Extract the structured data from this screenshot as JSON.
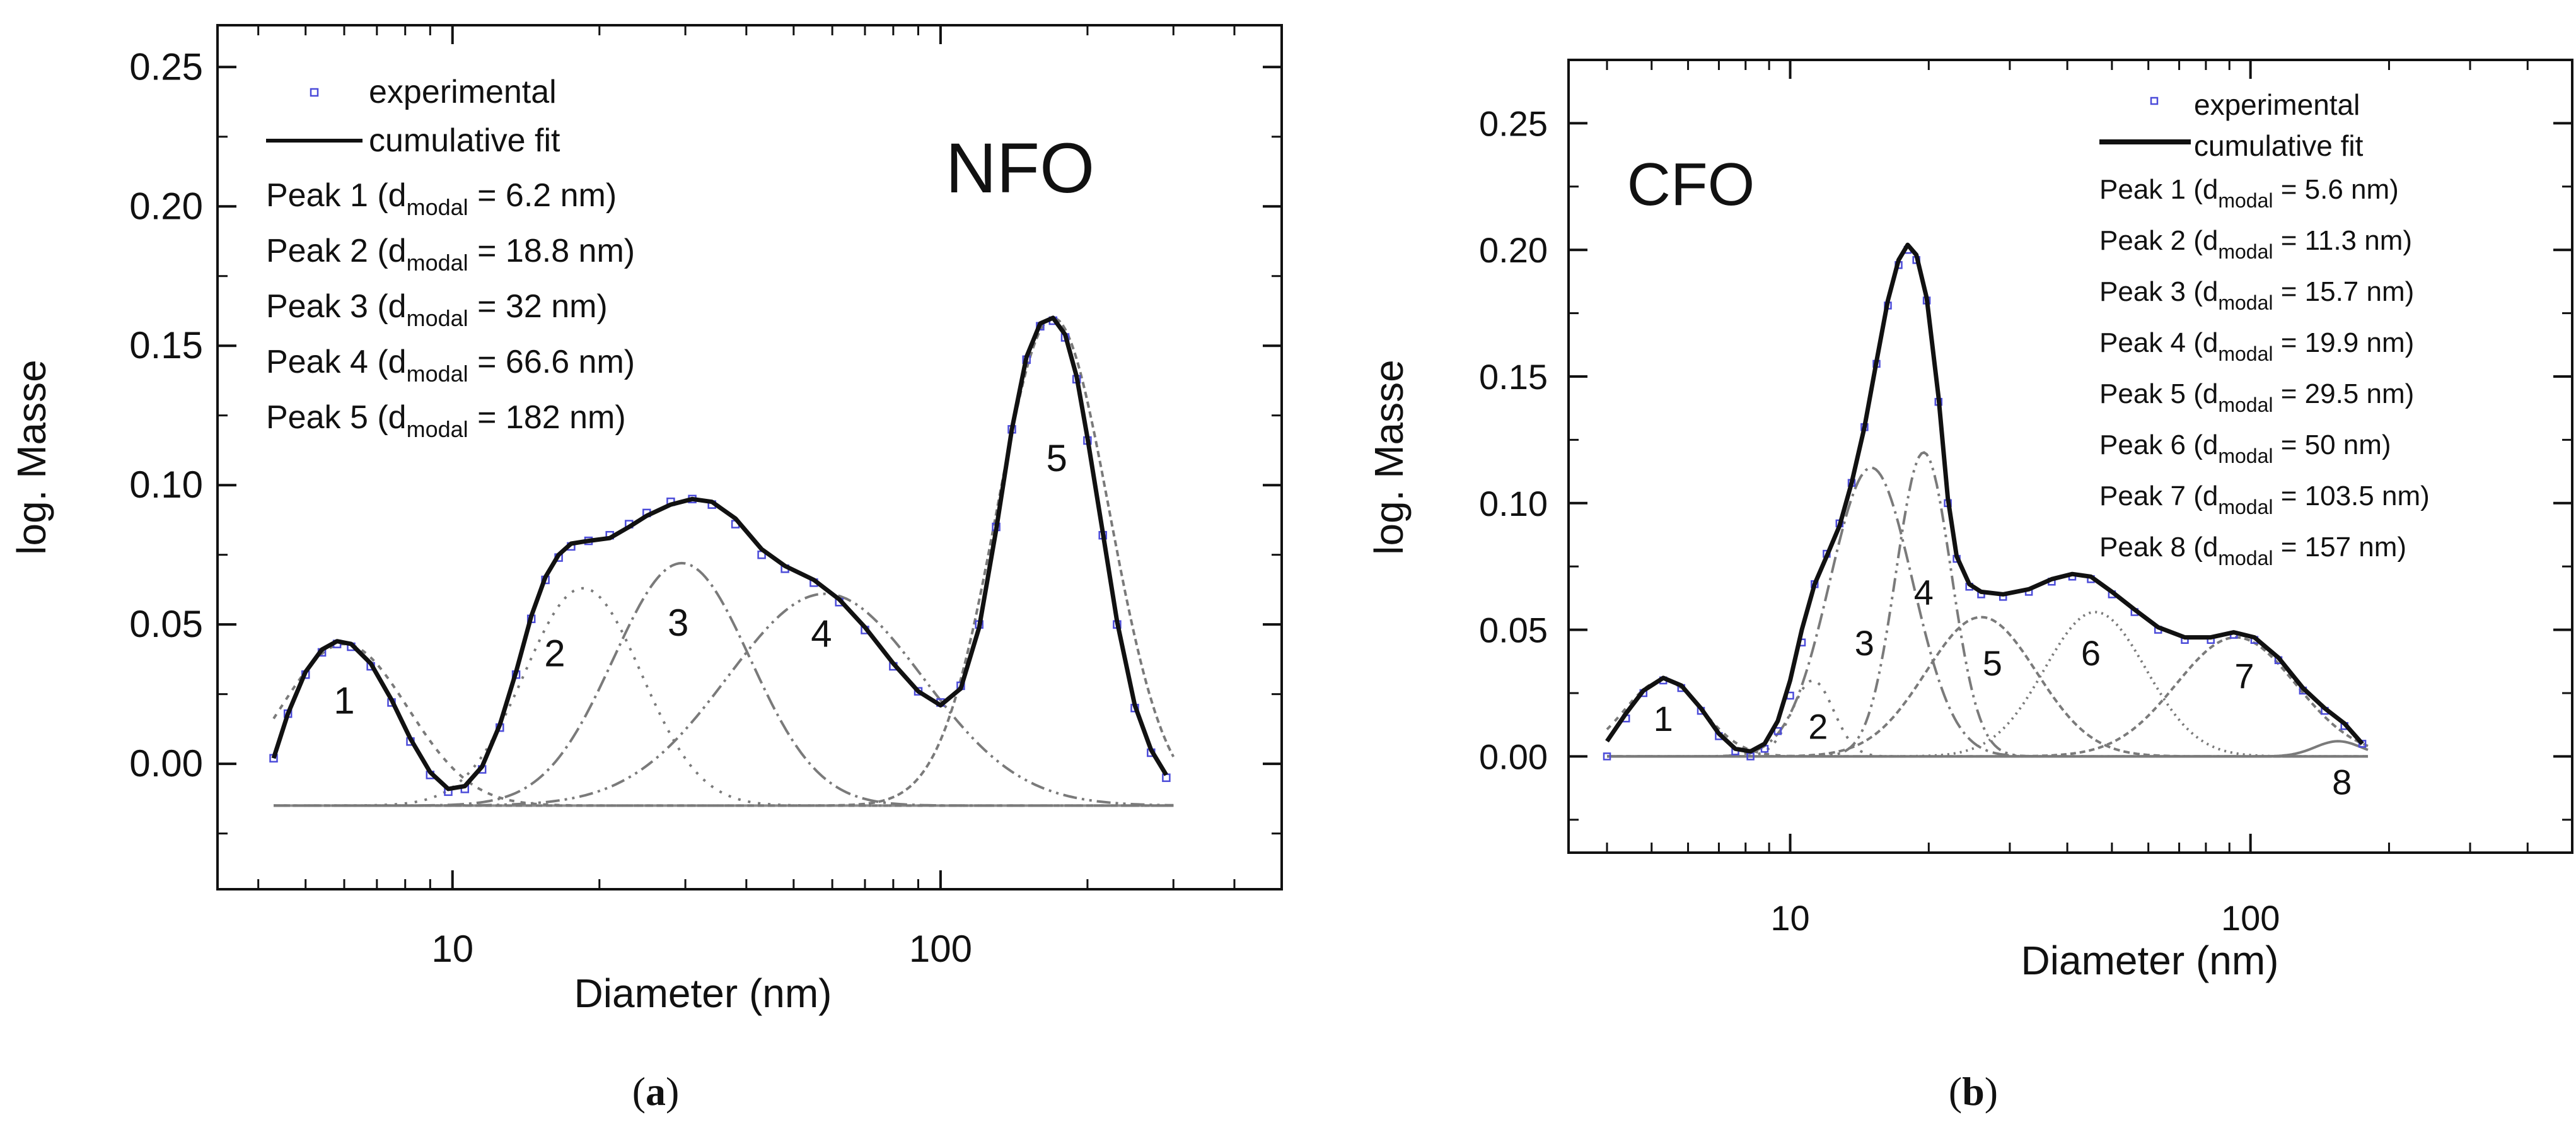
{
  "colors": {
    "axis": "#111111",
    "fit": "#111111",
    "peak": "#7a7a7a",
    "baseline": "#8c8c8c",
    "experimental": "#4b4bd9"
  },
  "chart_data": [
    {
      "type": "line",
      "panel_label": "a",
      "xscale": "log",
      "xlim": [
        3.3,
        500
      ],
      "ylim": [
        -0.045,
        0.265
      ],
      "xticks": [
        10,
        100
      ],
      "xtick_labels": [
        "10",
        "100"
      ],
      "yticks": [
        0.0,
        0.05,
        0.1,
        0.15,
        0.2,
        0.25
      ],
      "ytick_labels": [
        "0.00",
        "0.05",
        "0.10",
        "0.15",
        "0.20",
        "0.25"
      ],
      "xlabel": "Diameter (nm)",
      "ylabel": "log. Masse",
      "sample_label": "NFO",
      "legend": [
        {
          "label": "experimental",
          "style": "square-marker"
        },
        {
          "label": "cumulative fit",
          "style": "solid"
        }
      ],
      "peak_legend": [
        {
          "prefix": "Peak 1 (d",
          "sub": "modal",
          "suffix": " = 6.2 nm)"
        },
        {
          "prefix": "Peak 2 (d",
          "sub": "modal",
          "suffix": " = 18.8 nm)"
        },
        {
          "prefix": "Peak 3 (d",
          "sub": "modal",
          "suffix": " = 32 nm)"
        },
        {
          "prefix": "Peak 4 (d",
          "sub": "modal",
          "suffix": " = 66.6 nm)"
        },
        {
          "prefix": "Peak 5 (d",
          "sub": "modal",
          "suffix": " = 182 nm)"
        }
      ],
      "baseline": -0.015,
      "x_range": [
        4.3,
        300
      ],
      "peaks": [
        {
          "label": "1",
          "center": 6.0,
          "height": 0.058,
          "width": 0.13,
          "dash": "8 10",
          "label_pos": [
            6.0,
            0.018
          ]
        },
        {
          "label": "2",
          "center": 18.5,
          "height": 0.078,
          "width": 0.12,
          "dash": "4 12",
          "label_pos": [
            16.2,
            0.035
          ]
        },
        {
          "label": "3",
          "center": 29.5,
          "height": 0.087,
          "width": 0.14,
          "dash": "26 8 4 8",
          "label_pos": [
            29.0,
            0.046
          ]
        },
        {
          "label": "4",
          "center": 58.0,
          "height": 0.076,
          "width": 0.2,
          "dash": "22 8 4 8 4 8",
          "label_pos": [
            57.0,
            0.042
          ]
        },
        {
          "label": "5",
          "center": 170.0,
          "height": 0.175,
          "width": 0.115,
          "dash": "10 6",
          "label_pos": [
            173.0,
            0.105
          ]
        }
      ],
      "experimental": [
        [
          4.3,
          0.002
        ],
        [
          4.6,
          0.018
        ],
        [
          5.0,
          0.032
        ],
        [
          5.4,
          0.04
        ],
        [
          5.8,
          0.043
        ],
        [
          6.2,
          0.042
        ],
        [
          6.8,
          0.035
        ],
        [
          7.5,
          0.022
        ],
        [
          8.2,
          0.008
        ],
        [
          9.0,
          -0.004
        ],
        [
          9.8,
          -0.01
        ],
        [
          10.6,
          -0.009
        ],
        [
          11.5,
          -0.002
        ],
        [
          12.5,
          0.013
        ],
        [
          13.5,
          0.032
        ],
        [
          14.5,
          0.052
        ],
        [
          15.5,
          0.066
        ],
        [
          16.5,
          0.074
        ],
        [
          17.5,
          0.078
        ],
        [
          19.0,
          0.08
        ],
        [
          21.0,
          0.082
        ],
        [
          23.0,
          0.086
        ],
        [
          25.0,
          0.09
        ],
        [
          28.0,
          0.094
        ],
        [
          31.0,
          0.095
        ],
        [
          34.0,
          0.093
        ],
        [
          38.0,
          0.086
        ],
        [
          43.0,
          0.075
        ],
        [
          48.0,
          0.07
        ],
        [
          55.0,
          0.065
        ],
        [
          62.0,
          0.058
        ],
        [
          70.0,
          0.048
        ],
        [
          80.0,
          0.035
        ],
        [
          90.0,
          0.026
        ],
        [
          100.0,
          0.022
        ],
        [
          110.0,
          0.028
        ],
        [
          120.0,
          0.05
        ],
        [
          130.0,
          0.085
        ],
        [
          140.0,
          0.12
        ],
        [
          150.0,
          0.145
        ],
        [
          160.0,
          0.157
        ],
        [
          170.0,
          0.159
        ],
        [
          180.0,
          0.153
        ],
        [
          190.0,
          0.138
        ],
        [
          200.0,
          0.116
        ],
        [
          215.0,
          0.082
        ],
        [
          230.0,
          0.05
        ],
        [
          250.0,
          0.02
        ],
        [
          270.0,
          0.004
        ],
        [
          290.0,
          -0.005
        ]
      ],
      "fit": [
        [
          4.3,
          0.002
        ],
        [
          4.6,
          0.018
        ],
        [
          5.0,
          0.033
        ],
        [
          5.4,
          0.041
        ],
        [
          5.8,
          0.044
        ],
        [
          6.2,
          0.043
        ],
        [
          6.8,
          0.036
        ],
        [
          7.5,
          0.023
        ],
        [
          8.2,
          0.009
        ],
        [
          9.0,
          -0.003
        ],
        [
          9.8,
          -0.009
        ],
        [
          10.6,
          -0.008
        ],
        [
          11.5,
          -0.001
        ],
        [
          12.5,
          0.014
        ],
        [
          13.5,
          0.033
        ],
        [
          14.5,
          0.053
        ],
        [
          15.5,
          0.067
        ],
        [
          16.5,
          0.075
        ],
        [
          17.5,
          0.079
        ],
        [
          19.0,
          0.08
        ],
        [
          21.0,
          0.081
        ],
        [
          23.0,
          0.085
        ],
        [
          25.0,
          0.089
        ],
        [
          28.0,
          0.093
        ],
        [
          31.0,
          0.095
        ],
        [
          34.0,
          0.094
        ],
        [
          38.0,
          0.088
        ],
        [
          43.0,
          0.077
        ],
        [
          48.0,
          0.071
        ],
        [
          55.0,
          0.066
        ],
        [
          62.0,
          0.059
        ],
        [
          70.0,
          0.049
        ],
        [
          80.0,
          0.036
        ],
        [
          90.0,
          0.026
        ],
        [
          100.0,
          0.021
        ],
        [
          110.0,
          0.027
        ],
        [
          120.0,
          0.049
        ],
        [
          130.0,
          0.084
        ],
        [
          140.0,
          0.12
        ],
        [
          150.0,
          0.146
        ],
        [
          160.0,
          0.158
        ],
        [
          170.0,
          0.16
        ],
        [
          180.0,
          0.154
        ],
        [
          190.0,
          0.139
        ],
        [
          200.0,
          0.117
        ],
        [
          215.0,
          0.083
        ],
        [
          230.0,
          0.051
        ],
        [
          250.0,
          0.021
        ],
        [
          270.0,
          0.005
        ],
        [
          290.0,
          -0.004
        ]
      ]
    },
    {
      "type": "line",
      "panel_label": "b",
      "xscale": "log",
      "xlim": [
        3.3,
        500
      ],
      "ylim": [
        -0.038,
        0.275
      ],
      "xticks": [
        10,
        100
      ],
      "xtick_labels": [
        "10",
        "100"
      ],
      "yticks": [
        0.0,
        0.05,
        0.1,
        0.15,
        0.2,
        0.25
      ],
      "ytick_labels": [
        "0.00",
        "0.05",
        "0.10",
        "0.15",
        "0.20",
        "0.25"
      ],
      "xlabel": "Diameter (nm)",
      "ylabel": "log. Masse",
      "sample_label": "CFO",
      "legend": [
        {
          "label": "experimental",
          "style": "square-marker"
        },
        {
          "label": "cumulative fit",
          "style": "solid"
        }
      ],
      "peak_legend": [
        {
          "prefix": "Peak 1 (d",
          "sub": "modal",
          "suffix": " = 5.6 nm)"
        },
        {
          "prefix": "Peak 2 (d",
          "sub": "modal",
          "suffix": " = 11.3 nm)"
        },
        {
          "prefix": "Peak 3 (d",
          "sub": "modal",
          "suffix": " = 15.7 nm)"
        },
        {
          "prefix": "Peak 4 (d",
          "sub": "modal",
          "suffix": " = 19.9 nm)"
        },
        {
          "prefix": "Peak 5 (d",
          "sub": "modal",
          "suffix": " = 29.5 nm)"
        },
        {
          "prefix": "Peak 6 (d",
          "sub": "modal",
          "suffix": " = 50 nm)"
        },
        {
          "prefix": "Peak 7 (d",
          "sub": "modal",
          "suffix": " = 103.5 nm)"
        },
        {
          "prefix": "Peak 8 (d",
          "sub": "modal",
          "suffix": " = 157 nm)"
        }
      ],
      "baseline": 0.0,
      "x_range": [
        4.0,
        180
      ],
      "peaks": [
        {
          "label": "1",
          "center": 5.3,
          "height": 0.03,
          "width": 0.085,
          "dash": "8 10",
          "label_pos": [
            5.3,
            0.01
          ]
        },
        {
          "label": "2",
          "center": 11.2,
          "height": 0.03,
          "width": 0.045,
          "dash": "4 12",
          "label_pos": [
            11.5,
            0.007
          ]
        },
        {
          "label": "3",
          "center": 15.0,
          "height": 0.114,
          "width": 0.09,
          "dash": "26 8 4 8",
          "label_pos": [
            14.5,
            0.04
          ]
        },
        {
          "label": "4",
          "center": 19.5,
          "height": 0.12,
          "width": 0.06,
          "dash": "22 8 4 8 4 8",
          "label_pos": [
            19.5,
            0.06
          ]
        },
        {
          "label": "5",
          "center": 26.0,
          "height": 0.055,
          "width": 0.12,
          "dash": "10 6",
          "label_pos": [
            27.5,
            0.032
          ]
        },
        {
          "label": "6",
          "center": 46.0,
          "height": 0.057,
          "width": 0.11,
          "dash": "3 7",
          "label_pos": [
            45.0,
            0.036
          ]
        },
        {
          "label": "7",
          "center": 93.0,
          "height": 0.047,
          "width": 0.13,
          "dash": "9 6",
          "label_pos": [
            97.0,
            0.027
          ]
        },
        {
          "label": "8",
          "center": 155.0,
          "height": 0.006,
          "width": 0.05,
          "dash": "",
          "label_pos": [
            158.0,
            -0.015
          ]
        }
      ],
      "experimental": [
        [
          4.0,
          0.0
        ],
        [
          4.4,
          0.015
        ],
        [
          4.8,
          0.025
        ],
        [
          5.3,
          0.03
        ],
        [
          5.8,
          0.027
        ],
        [
          6.4,
          0.018
        ],
        [
          7.0,
          0.008
        ],
        [
          7.6,
          0.002
        ],
        [
          8.2,
          0.0
        ],
        [
          8.8,
          0.003
        ],
        [
          9.4,
          0.01
        ],
        [
          10.0,
          0.024
        ],
        [
          10.6,
          0.045
        ],
        [
          11.3,
          0.068
        ],
        [
          12.0,
          0.08
        ],
        [
          12.8,
          0.092
        ],
        [
          13.6,
          0.108
        ],
        [
          14.5,
          0.13
        ],
        [
          15.4,
          0.155
        ],
        [
          16.3,
          0.178
        ],
        [
          17.2,
          0.194
        ],
        [
          18.0,
          0.2
        ],
        [
          18.8,
          0.196
        ],
        [
          19.8,
          0.18
        ],
        [
          21.0,
          0.14
        ],
        [
          22.0,
          0.1
        ],
        [
          23.0,
          0.078
        ],
        [
          24.5,
          0.067
        ],
        [
          26.0,
          0.064
        ],
        [
          29.0,
          0.063
        ],
        [
          33.0,
          0.065
        ],
        [
          37.0,
          0.069
        ],
        [
          41.0,
          0.071
        ],
        [
          45.0,
          0.07
        ],
        [
          50.0,
          0.064
        ],
        [
          56.0,
          0.057
        ],
        [
          63.0,
          0.05
        ],
        [
          72.0,
          0.046
        ],
        [
          82.0,
          0.046
        ],
        [
          92.0,
          0.048
        ],
        [
          102.0,
          0.046
        ],
        [
          115.0,
          0.038
        ],
        [
          130.0,
          0.026
        ],
        [
          145.0,
          0.018
        ],
        [
          160.0,
          0.012
        ],
        [
          175.0,
          0.005
        ]
      ],
      "fit": [
        [
          4.0,
          0.006
        ],
        [
          4.4,
          0.017
        ],
        [
          4.8,
          0.026
        ],
        [
          5.3,
          0.031
        ],
        [
          5.8,
          0.028
        ],
        [
          6.4,
          0.019
        ],
        [
          7.0,
          0.009
        ],
        [
          7.6,
          0.003
        ],
        [
          8.2,
          0.002
        ],
        [
          8.8,
          0.005
        ],
        [
          9.4,
          0.014
        ],
        [
          10.0,
          0.03
        ],
        [
          10.6,
          0.05
        ],
        [
          11.3,
          0.068
        ],
        [
          12.0,
          0.079
        ],
        [
          12.8,
          0.091
        ],
        [
          13.6,
          0.108
        ],
        [
          14.5,
          0.13
        ],
        [
          15.4,
          0.156
        ],
        [
          16.3,
          0.18
        ],
        [
          17.2,
          0.196
        ],
        [
          18.0,
          0.202
        ],
        [
          18.8,
          0.198
        ],
        [
          19.8,
          0.181
        ],
        [
          21.0,
          0.142
        ],
        [
          22.0,
          0.102
        ],
        [
          23.0,
          0.079
        ],
        [
          24.5,
          0.068
        ],
        [
          26.0,
          0.065
        ],
        [
          29.0,
          0.064
        ],
        [
          33.0,
          0.066
        ],
        [
          37.0,
          0.07
        ],
        [
          41.0,
          0.072
        ],
        [
          45.0,
          0.071
        ],
        [
          50.0,
          0.065
        ],
        [
          56.0,
          0.058
        ],
        [
          63.0,
          0.051
        ],
        [
          72.0,
          0.047
        ],
        [
          82.0,
          0.047
        ],
        [
          92.0,
          0.049
        ],
        [
          102.0,
          0.047
        ],
        [
          115.0,
          0.039
        ],
        [
          130.0,
          0.027
        ],
        [
          145.0,
          0.019
        ],
        [
          160.0,
          0.013
        ],
        [
          175.0,
          0.005
        ]
      ]
    }
  ]
}
